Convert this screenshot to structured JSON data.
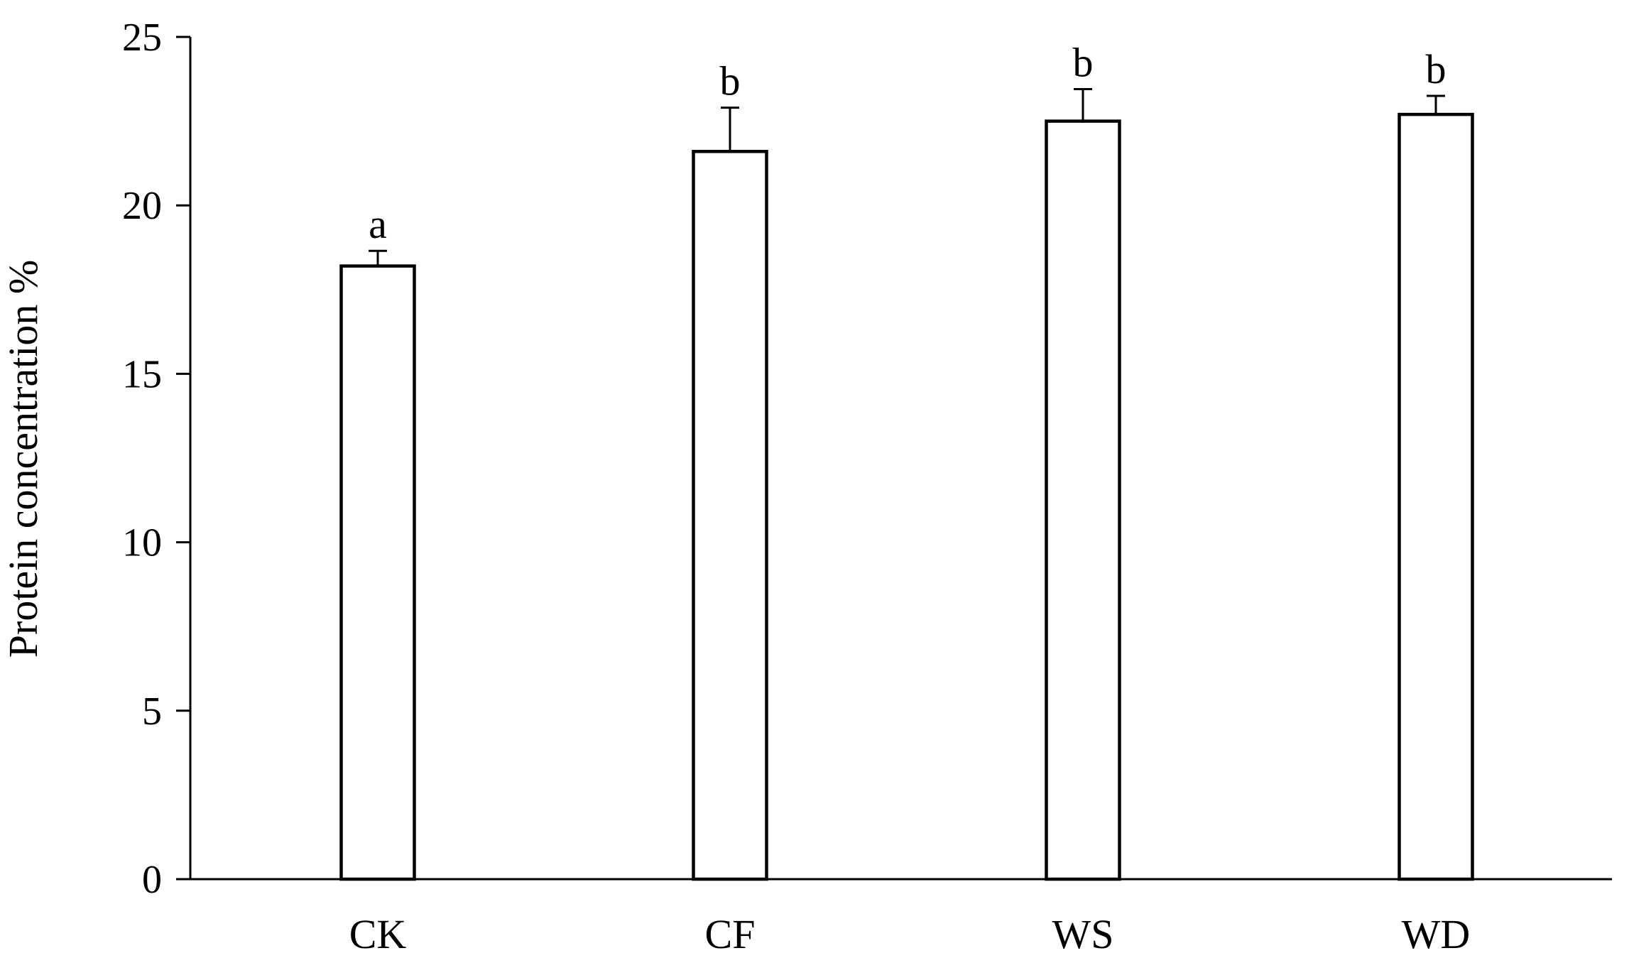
{
  "chart_data": {
    "type": "bar",
    "categories": [
      "CK",
      "CF",
      "WS",
      "WD"
    ],
    "values": [
      18.2,
      21.6,
      22.5,
      22.7
    ],
    "error_bars": [
      0.45,
      1.3,
      0.95,
      0.55
    ],
    "significance_letters": [
      "a",
      "b",
      "b",
      "b"
    ],
    "title": "",
    "xlabel": "",
    "ylabel": "Protein concentration %",
    "ylim": [
      0,
      25
    ],
    "yticks": [
      0,
      5,
      10,
      15,
      20,
      25
    ],
    "ytick_labels": [
      "0",
      "5",
      "10",
      "15",
      "20",
      "25"
    ],
    "grid": false,
    "legend": "none",
    "colors": {
      "bar_fill": "#ffffff",
      "bar_edge": "#000000",
      "axis": "#000000",
      "text": "#000000"
    }
  }
}
